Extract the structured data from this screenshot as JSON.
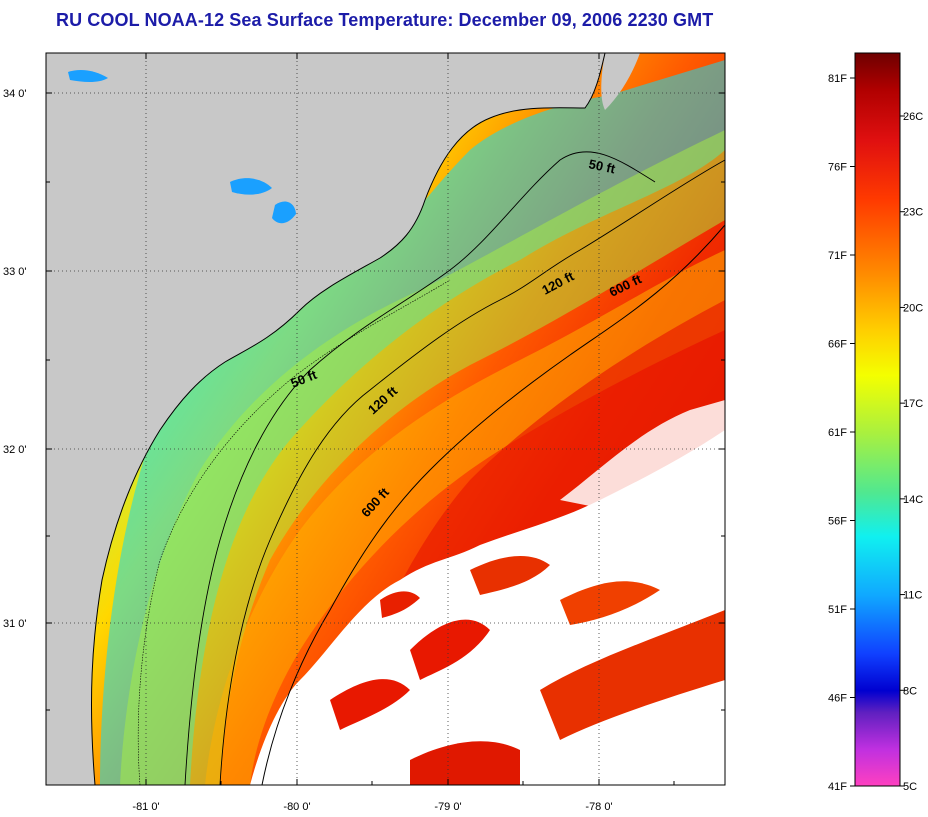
{
  "title": "RU COOL  NOAA-12  Sea Surface Temperature:  December 09, 2006 2230 GMT",
  "map": {
    "lat_ticks": [
      "34 0'",
      "33 0'",
      "32 0'",
      "31 0'"
    ],
    "lon_ticks": [
      "-81 0'",
      "-80 0'",
      "-79 0'",
      "-78 0'"
    ],
    "contour_labels": {
      "north_50": "50 ft",
      "north_120": "120 ft",
      "north_600": "600 ft",
      "mid_50": "50 ft",
      "mid_120": "120 ft",
      "south_600": "600 ft"
    },
    "colors": {
      "land": "#c8c8c8",
      "cloud": "#ffffff",
      "contour": "#000000"
    }
  },
  "colorbar": {
    "fahrenheit_labels": [
      "81F",
      "76F",
      "71F",
      "66F",
      "61F",
      "56F",
      "51F",
      "46F",
      "41F"
    ],
    "celsius_labels": [
      "26C",
      "23C",
      "20C",
      "17C",
      "14C",
      "11C",
      "8C",
      "5C"
    ],
    "gradient_stops": [
      {
        "pos": 0.0,
        "color": "#6e0000"
      },
      {
        "pos": 0.05,
        "color": "#b00000"
      },
      {
        "pos": 0.12,
        "color": "#e01010"
      },
      {
        "pos": 0.2,
        "color": "#ff3a00"
      },
      {
        "pos": 0.3,
        "color": "#ff8a00"
      },
      {
        "pos": 0.38,
        "color": "#ffd000"
      },
      {
        "pos": 0.44,
        "color": "#f4ff00"
      },
      {
        "pos": 0.52,
        "color": "#a8f040"
      },
      {
        "pos": 0.6,
        "color": "#50e890"
      },
      {
        "pos": 0.66,
        "color": "#10f0f0"
      },
      {
        "pos": 0.74,
        "color": "#10a8ff"
      },
      {
        "pos": 0.82,
        "color": "#1040ff"
      },
      {
        "pos": 0.87,
        "color": "#0000d0"
      },
      {
        "pos": 0.9,
        "color": "#6020c0"
      },
      {
        "pos": 0.95,
        "color": "#c030e0"
      },
      {
        "pos": 1.0,
        "color": "#ff40c0"
      }
    ]
  }
}
